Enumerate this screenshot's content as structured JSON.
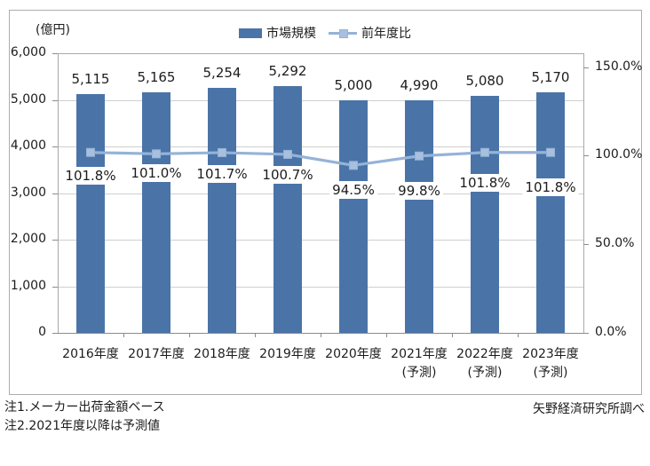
{
  "figure": {
    "unit_label": "(億円)",
    "notes": [
      "注1.メーカー出荷金額ベース",
      "注2.2021年度以降は予測値"
    ],
    "source_label": "矢野経済研究所調べ"
  },
  "chart_data": {
    "type": "combo_bar_line",
    "title": "",
    "legend_position": "top-center",
    "grid": true,
    "categories": [
      {
        "label": "2016年度",
        "sublabel": ""
      },
      {
        "label": "2017年度",
        "sublabel": ""
      },
      {
        "label": "2018年度",
        "sublabel": ""
      },
      {
        "label": "2019年度",
        "sublabel": ""
      },
      {
        "label": "2020年度",
        "sublabel": ""
      },
      {
        "label": "2021年度",
        "sublabel": "(予測)"
      },
      {
        "label": "2022年度",
        "sublabel": "(予測)"
      },
      {
        "label": "2023年度",
        "sublabel": "(予測)"
      }
    ],
    "series": [
      {
        "name": "市場規模",
        "type": "bar",
        "axis": "left",
        "unit": "億円",
        "color": "#4A74A8",
        "values": [
          5115,
          5165,
          5254,
          5292,
          5000,
          4990,
          5080,
          5170
        ],
        "labels": [
          "5,115",
          "5,165",
          "5,254",
          "5,292",
          "5,000",
          "4,990",
          "5,080",
          "5,170"
        ]
      },
      {
        "name": "前年度比",
        "type": "line",
        "axis": "right",
        "unit": "%",
        "color": "#95B3D7",
        "marker_color": "#A9BFDE",
        "values": [
          101.8,
          101.0,
          101.7,
          100.7,
          94.5,
          99.8,
          101.8,
          101.8
        ],
        "labels": [
          "101.8%",
          "101.0%",
          "101.7%",
          "100.7%",
          "94.5%",
          "99.8%",
          "101.8%",
          "101.8%"
        ]
      }
    ],
    "left_axis": {
      "min": 0,
      "max": 6000,
      "tick_values": [
        6000,
        5000,
        4000,
        3000,
        2000,
        1000,
        0
      ],
      "tick_labels": [
        "6,000",
        "5,000",
        "4,000",
        "3,000",
        "2,000",
        "1,000",
        "0"
      ]
    },
    "right_axis": {
      "min": 0,
      "max": 157,
      "tick_values": [
        150,
        100,
        50,
        0
      ],
      "tick_labels": [
        "150.0%",
        "100.0%",
        "50.0%",
        "0.0%"
      ]
    }
  }
}
